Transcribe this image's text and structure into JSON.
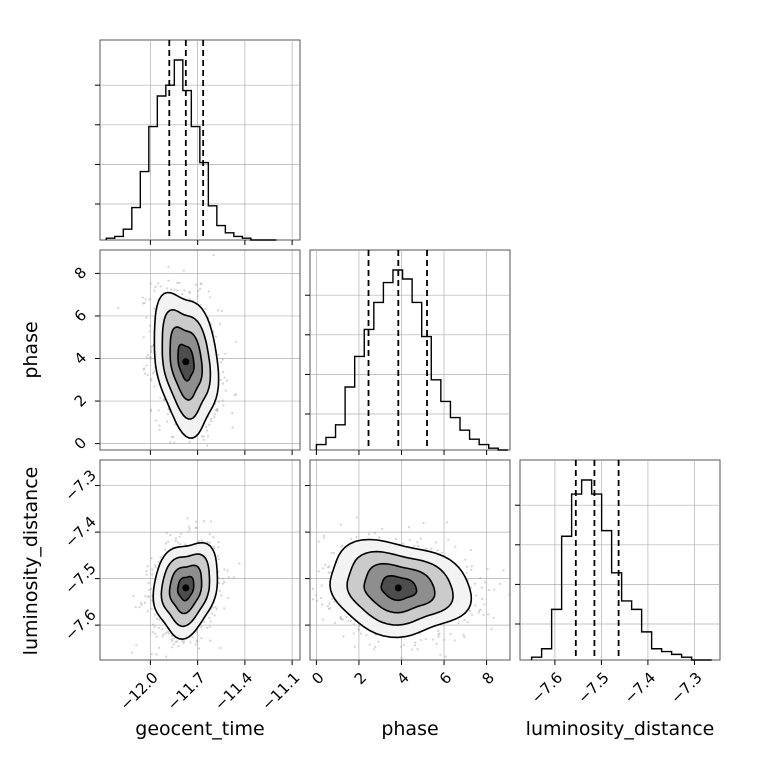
{
  "chart_data": {
    "type": "corner",
    "parameters": [
      "geocent_time",
      "phase",
      "luminosity_distance"
    ],
    "axes": {
      "geocent_time": {
        "label": "geocent_time",
        "range": [
          -12.32,
          -11.05
        ],
        "ticks": [
          -12.0,
          -11.7,
          -11.4,
          -11.1
        ],
        "tick_labels": [
          "−12.0",
          "−11.7",
          "−11.4",
          "−11.1"
        ]
      },
      "phase": {
        "label": "phase",
        "range": [
          -0.3,
          9.1
        ],
        "ticks": [
          0,
          2,
          4,
          6,
          8
        ],
        "tick_labels": [
          "0",
          "2",
          "4",
          "6",
          "8"
        ]
      },
      "luminosity_distance": {
        "label": "luminosity_distance",
        "range": [
          -7.675,
          -7.245
        ],
        "ticks": [
          -7.6,
          -7.5,
          -7.4,
          -7.3
        ],
        "tick_labels": [
          "−7.6",
          "−7.5",
          "−7.4",
          "−7.3"
        ]
      }
    },
    "histograms": [
      {
        "parameter": "geocent_time",
        "bins": [
          -12.28,
          -12.226,
          -12.172,
          -12.118,
          -12.064,
          -12.01,
          -11.956,
          -11.902,
          -11.848,
          -11.794,
          -11.74,
          -11.686,
          -11.632,
          -11.578,
          -11.524,
          -11.47,
          -11.416,
          -11.362,
          -11.308,
          -11.254,
          -11.2
        ],
        "counts": [
          1,
          2,
          6,
          18,
          38,
          63,
          80,
          86,
          100,
          83,
          63,
          43,
          19,
          8,
          4,
          2,
          1,
          0,
          0,
          0
        ],
        "quantiles": [
          -11.88,
          -11.775,
          -11.665
        ]
      },
      {
        "parameter": "phase",
        "bins": [
          0.0,
          0.45,
          0.9,
          1.35,
          1.8,
          2.25,
          2.7,
          3.15,
          3.6,
          4.05,
          4.5,
          4.95,
          5.4,
          5.85,
          6.3,
          6.75,
          7.2,
          7.65,
          8.1,
          8.55,
          9.0
        ],
        "counts": [
          3,
          7,
          14,
          35,
          52,
          67,
          82,
          93,
          100,
          95,
          82,
          63,
          39,
          27,
          18,
          11,
          6,
          3,
          1,
          0
        ],
        "quantiles": [
          2.45,
          3.85,
          5.2
        ]
      },
      {
        "parameter": "luminosity_distance",
        "bins": [
          -7.65,
          -7.6285,
          -7.607,
          -7.5855,
          -7.564,
          -7.5425,
          -7.521,
          -7.4995,
          -7.478,
          -7.4565,
          -7.435,
          -7.4135,
          -7.392,
          -7.3705,
          -7.349,
          -7.3275,
          -7.306,
          -7.2845,
          -7.263
        ],
        "counts": [
          1,
          4,
          18,
          44,
          59,
          64,
          59,
          46,
          31,
          21,
          18,
          10,
          4,
          3,
          2,
          1,
          0,
          0
        ],
        "quantiles": [
          -7.555,
          -7.515,
          -7.463
        ]
      }
    ],
    "joint": [
      {
        "x": "geocent_time",
        "y": "phase",
        "mean": [
          -11.775,
          3.85
        ],
        "sd": [
          0.085,
          1.38
        ],
        "rho": -0.25,
        "contour_levels_sd": [
          0.6,
          1.2,
          1.8,
          2.4
        ]
      },
      {
        "x": "geocent_time",
        "y": "luminosity_distance",
        "mean": [
          -11.775,
          -7.52
        ],
        "sd": [
          0.085,
          0.042
        ],
        "rho": 0.18,
        "contour_levels_sd": [
          0.6,
          1.2,
          1.8,
          2.4
        ]
      },
      {
        "x": "phase",
        "y": "luminosity_distance",
        "mean": [
          3.85,
          -7.52
        ],
        "sd": [
          1.38,
          0.042
        ],
        "rho": -0.15,
        "contour_levels_sd": [
          0.6,
          1.2,
          1.8,
          2.4
        ]
      }
    ],
    "quantile_style": "dashed",
    "grid": true,
    "colors": {
      "line": "#000000",
      "scatter": "#9e9e9e",
      "grid": "#b0b0b0",
      "frame": "#555555"
    }
  }
}
